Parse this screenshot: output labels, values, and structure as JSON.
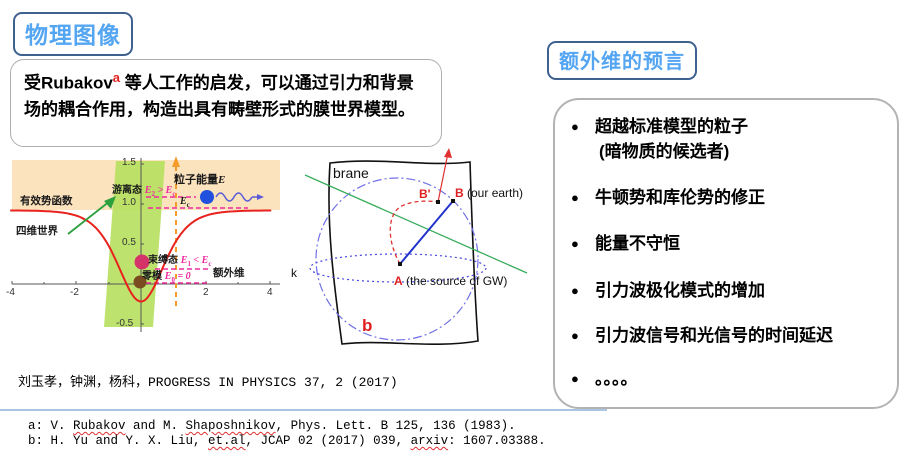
{
  "titles": {
    "left": "物理图像",
    "right": "额外维的预言"
  },
  "intro": {
    "before": "受Rubakov",
    "sup": "a",
    "after": " 等人工作的启发，可以通过引力和背景场的耦合作用，构造出具有畴壁形式的膜世界模型。"
  },
  "plot": {
    "yticks": [
      "1.5",
      "1.0",
      "0.5",
      "-0.5"
    ],
    "xticks": [
      "-4",
      "-2",
      "2",
      "4"
    ],
    "labels": {
      "effective_potential": "有效势函数",
      "four_d_world": "四维世界",
      "particle_energy": "粒子能量",
      "particle_energy_E": "E",
      "free_state": "游离态",
      "bound_state": "束缚态",
      "zero_mode": "零模",
      "extra_dimension": "额外维"
    },
    "math": {
      "E": "E",
      "sub2": "2",
      "sub1": "1",
      "sub0": "0",
      "subc": "c",
      "gt": " > ",
      "lt": " < ",
      "eq0": " = 0"
    },
    "chart_data": {
      "type": "line",
      "xlabel": "额外维",
      "ylabel": "有效势函数",
      "xlim": [
        -4,
        4
      ],
      "ylim": [
        -0.5,
        1.5
      ],
      "xticks": [
        -4,
        -2,
        2,
        4
      ],
      "yticks": [
        -0.5,
        0.5,
        1.0,
        1.5
      ],
      "series": [
        {
          "name": "有效势函数 (volcano potential)",
          "description": "flat at V≈0.92 for large |x|, single well with minimum V≈-0.22 at x=0",
          "color": "#e8231e"
        }
      ],
      "energy_levels": [
        {
          "name": "游离态 E2 > Ec",
          "value": 1.09,
          "marker": "blue ball with wavy photon arrow"
        },
        {
          "name": "Ec",
          "value": 0.95
        },
        {
          "name": "束缚态 E1 < Ec",
          "value": 0.2,
          "marker": "crimson ball"
        },
        {
          "name": "零模 E0 = 0",
          "value": 0.01,
          "marker": "brown ball"
        }
      ],
      "regions": [
        {
          "name": "continuum band",
          "range": "V > 0.92",
          "color": "#fbe3bd"
        },
        {
          "name": "brane (四维世界)",
          "shape": "slanted parallelogram around x=0",
          "color": "#b6e05e"
        }
      ]
    }
  },
  "brane": {
    "brane_label": "brane",
    "b_prime": "B'",
    "b_point": "B",
    "b_desc": "(our earth)",
    "a_point": "A",
    "a_desc": "(the source of GW)",
    "k_label": "k",
    "b_footref": "b"
  },
  "predictions": {
    "bullet": "●",
    "items": [
      {
        "text": "超越标准模型的粒子",
        "bullet": true
      },
      {
        "text": "(暗物质的候选者)",
        "bullet": false
      },
      {
        "text": "牛顿势和库伦势的修正",
        "bullet": true
      },
      {
        "text": "能量不守恒",
        "bullet": true
      },
      {
        "text": "引力波极化模式的增加",
        "bullet": true
      },
      {
        "text": "引力波信号和光信号的时间延迟",
        "bullet": true
      },
      {
        "text": "。。。。",
        "bullet": true
      }
    ]
  },
  "citation": "刘玉孝，钟渊，杨科，PROGRESS IN PHYSICS 37, 2 (2017)",
  "footnotes": {
    "a": {
      "p1": "a: V. ",
      "w1": "Rubakov",
      "p2": " and M. ",
      "w2": "Shaposhnikov",
      "p3": ", Phys. Lett. B 125, 136 (1983)."
    },
    "b": {
      "p1": "b: H. Yu and Y. X. Liu, ",
      "w1": "et.al",
      "p2": ", JCAP 02 (2017) 039, ",
      "w2": "arxiv",
      "p3": ": 1607.03388."
    }
  },
  "colors": {
    "title_text": "#55a6f2",
    "title_border": "#3e618f",
    "superscript_red": "#e02020",
    "magenta": "#ee2a9e",
    "orange_dashed": "#f59b2c",
    "curve_red": "#e8231e",
    "band_tan": "#fbe3bd",
    "brane_green": "#b6e05e",
    "divider_blue": "#a9c5e2"
  }
}
